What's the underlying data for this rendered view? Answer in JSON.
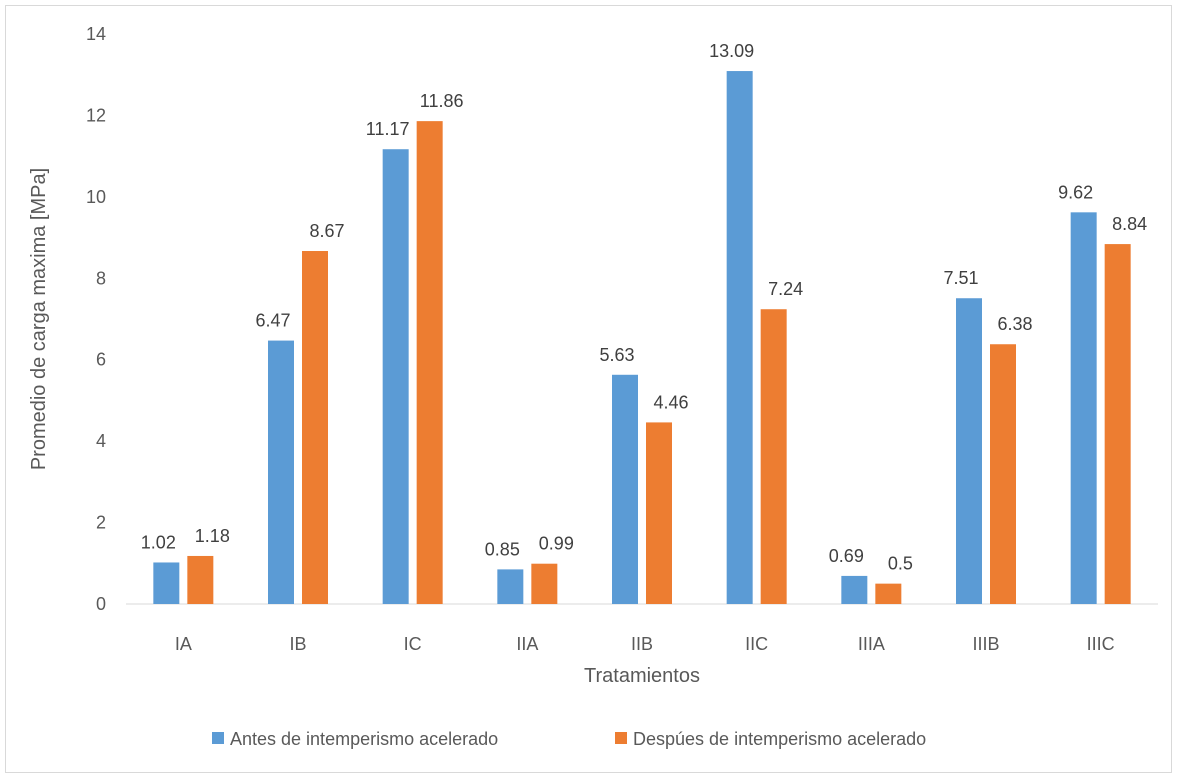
{
  "chart_data": {
    "type": "bar",
    "title": "",
    "xlabel": "Tratamientos",
    "ylabel": "Promedio de carga maxima [MPa]",
    "ylim": [
      0,
      14
    ],
    "yticks": [
      0,
      2,
      4,
      6,
      8,
      10,
      12,
      14
    ],
    "grid": false,
    "legend_position": "bottom",
    "categories": [
      "IA",
      "IB",
      "IC",
      "IIA",
      "IIB",
      "IIC",
      "IIIA",
      "IIIB",
      "IIIC"
    ],
    "series": [
      {
        "name": "Antes de intemperismo acelerado",
        "color": "#5b9bd5",
        "values": [
          1.02,
          6.47,
          11.17,
          0.85,
          5.63,
          13.09,
          0.69,
          7.51,
          9.62
        ],
        "labels": [
          "1.02",
          "6.47",
          "11.17",
          "0.85",
          "5.63",
          "13.09",
          "0.69",
          "7.51",
          "9.62"
        ]
      },
      {
        "name": "Despúes de intemperismo acelerado",
        "color": "#ed7d31",
        "values": [
          1.18,
          8.67,
          11.86,
          0.99,
          4.46,
          7.24,
          0.5,
          6.38,
          8.84
        ],
        "labels": [
          "1.18",
          "8.67",
          "11.86",
          "0.99",
          "4.46",
          "7.24",
          "0.5",
          "6.38",
          "8.84"
        ]
      }
    ]
  }
}
